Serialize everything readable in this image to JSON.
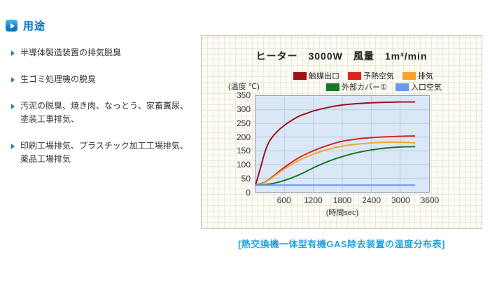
{
  "header": {
    "title": "用途"
  },
  "list": {
    "items": [
      "半導体製造装置の排気脱臭",
      "生ゴミ処理機の脱臭",
      "汚泥の脱臭、焼き肉、なっとう、家畜糞尿、\n塗装工事排気、",
      "印刷工場排気、プラスチック加工工場排気、\n薬品工場排気"
    ]
  },
  "caption": "[熱交換機一体型有機GAS除去装置の温度分布表]",
  "colors": {
    "heading_blue": "#0072bc",
    "caption_cyan": "#23a3dc",
    "bullet_blue": "#2b7bc0",
    "panel_paper": "#fdfcf6",
    "plot_background": "#d9e7f6"
  },
  "chart_data": {
    "type": "line",
    "title": "ヒーター　3000W　風量　1m³/min",
    "ylabel": "(温度 ℃)",
    "xlabel": "(時間sec)",
    "xlim": [
      0,
      3600
    ],
    "ylim": [
      0,
      350
    ],
    "xticks": [
      600,
      1200,
      1800,
      2400,
      3000,
      3600
    ],
    "yticks": [
      0,
      50,
      100,
      150,
      200,
      250,
      300,
      350
    ],
    "grid_color": "#bccde0",
    "legend": {
      "rows": [
        [
          {
            "label": "触媒出口",
            "color": "#9c1116"
          },
          {
            "label": "予熱空気",
            "color": "#dc231d"
          },
          {
            "label": "排気",
            "color": "#f5a32a"
          }
        ],
        [
          {
            "label": "外部カバー①",
            "color": "#177722"
          },
          {
            "label": "入口空気",
            "color": "#6e97f2"
          }
        ]
      ]
    },
    "series": [
      {
        "name": "触媒出口",
        "color": "#9c1116",
        "points": [
          [
            0,
            25
          ],
          [
            100,
            85
          ],
          [
            200,
            148
          ],
          [
            300,
            188
          ],
          [
            450,
            220
          ],
          [
            600,
            243
          ],
          [
            750,
            261
          ],
          [
            900,
            276
          ],
          [
            1050,
            286
          ],
          [
            1200,
            295
          ],
          [
            1500,
            308
          ],
          [
            1800,
            317
          ],
          [
            2100,
            322
          ],
          [
            2400,
            325
          ],
          [
            2700,
            327
          ],
          [
            3000,
            328
          ],
          [
            3300,
            328
          ]
        ]
      },
      {
        "name": "予熱空気",
        "color": "#dc231d",
        "points": [
          [
            0,
            25
          ],
          [
            150,
            33
          ],
          [
            300,
            48
          ],
          [
            600,
            90
          ],
          [
            900,
            125
          ],
          [
            1200,
            150
          ],
          [
            1500,
            170
          ],
          [
            1800,
            185
          ],
          [
            2100,
            193
          ],
          [
            2400,
            198
          ],
          [
            2700,
            201
          ],
          [
            3000,
            203
          ],
          [
            3300,
            204
          ]
        ]
      },
      {
        "name": "排気",
        "color": "#f5a32a",
        "points": [
          [
            0,
            25
          ],
          [
            150,
            32
          ],
          [
            300,
            46
          ],
          [
            600,
            84
          ],
          [
            900,
            115
          ],
          [
            1200,
            138
          ],
          [
            1500,
            155
          ],
          [
            1800,
            167
          ],
          [
            2100,
            174
          ],
          [
            2400,
            179
          ],
          [
            2700,
            181
          ],
          [
            3000,
            181
          ],
          [
            3300,
            179
          ]
        ]
      },
      {
        "name": "外部カバー①",
        "color": "#177722",
        "points": [
          [
            0,
            25
          ],
          [
            300,
            29
          ],
          [
            600,
            42
          ],
          [
            900,
            62
          ],
          [
            1200,
            88
          ],
          [
            1500,
            111
          ],
          [
            1800,
            129
          ],
          [
            2100,
            143
          ],
          [
            2400,
            153
          ],
          [
            2700,
            160
          ],
          [
            3000,
            164
          ],
          [
            3300,
            165
          ]
        ]
      },
      {
        "name": "入口空気",
        "color": "#6e97f2",
        "points": [
          [
            0,
            25
          ],
          [
            1650,
            25
          ],
          [
            3300,
            25
          ]
        ]
      }
    ]
  }
}
